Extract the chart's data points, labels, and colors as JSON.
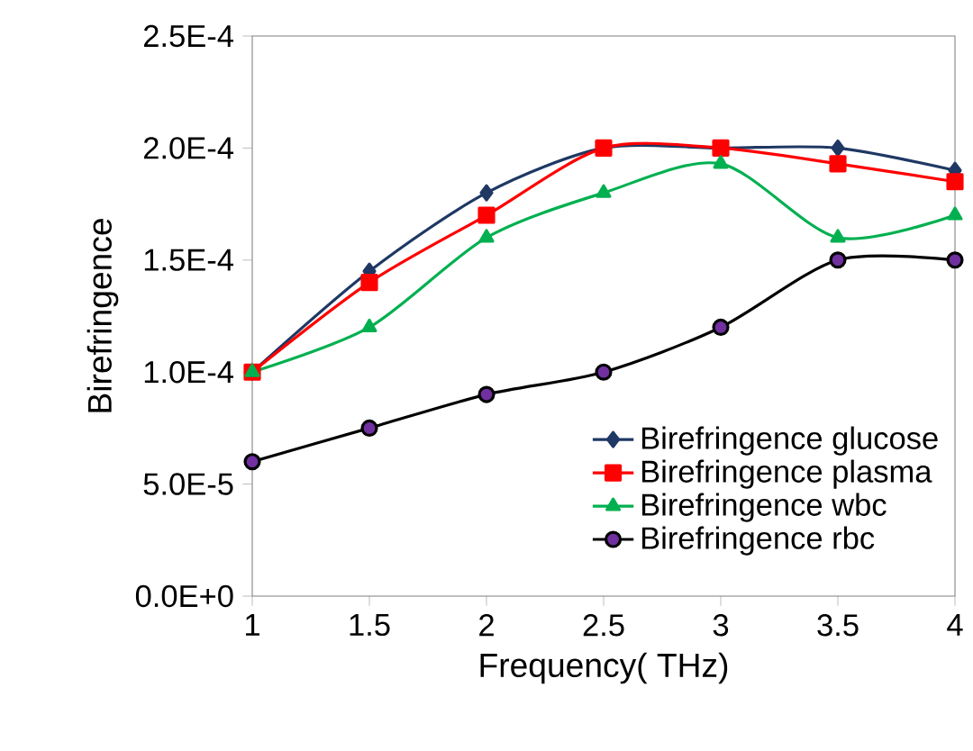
{
  "chart_data": {
    "type": "line",
    "xlabel": "Frequency( THz)",
    "ylabel": "Birefringence",
    "x": [
      1,
      1.5,
      2,
      2.5,
      3,
      3.5,
      4
    ],
    "series": [
      {
        "name": "Birefringence glucose",
        "color": "#1f3864",
        "marker": "diamond",
        "values": [
          0.0001,
          0.000145,
          0.00018,
          0.0002,
          0.0002,
          0.0002,
          0.00019
        ]
      },
      {
        "name": "Birefringence plasma",
        "color": "#ff0000",
        "marker": "square",
        "values": [
          0.0001,
          0.00014,
          0.00017,
          0.0002,
          0.0002,
          0.000193,
          0.000185
        ]
      },
      {
        "name": "Birefringence wbc",
        "color": "#00b050",
        "marker": "triangle",
        "values": [
          0.0001,
          0.00012,
          0.00016,
          0.00018,
          0.000193,
          0.00016,
          0.00017
        ]
      },
      {
        "name": "Birefringence rbc",
        "color": "#000000",
        "marker": "circle",
        "values": [
          6e-05,
          7.5e-05,
          9e-05,
          0.0001,
          0.00012,
          0.00015,
          0.00015
        ]
      }
    ],
    "xlim": [
      1,
      4
    ],
    "ylim": [
      0,
      0.00025
    ],
    "xticks": [
      1,
      1.5,
      2,
      2.5,
      3,
      3.5,
      4
    ],
    "yticks": [
      {
        "value": 0,
        "label": "0.0E+0"
      },
      {
        "value": 5e-05,
        "label": "5.0E-5"
      },
      {
        "value": 0.0001,
        "label": "1.0E-4"
      },
      {
        "value": 0.00015,
        "label": "1.5E-4"
      },
      {
        "value": 0.0002,
        "label": "2.0E-4"
      },
      {
        "value": 0.00025,
        "label": "2.5E-4"
      }
    ],
    "grid": false,
    "legend": "bottom right",
    "line_style": "solid"
  }
}
